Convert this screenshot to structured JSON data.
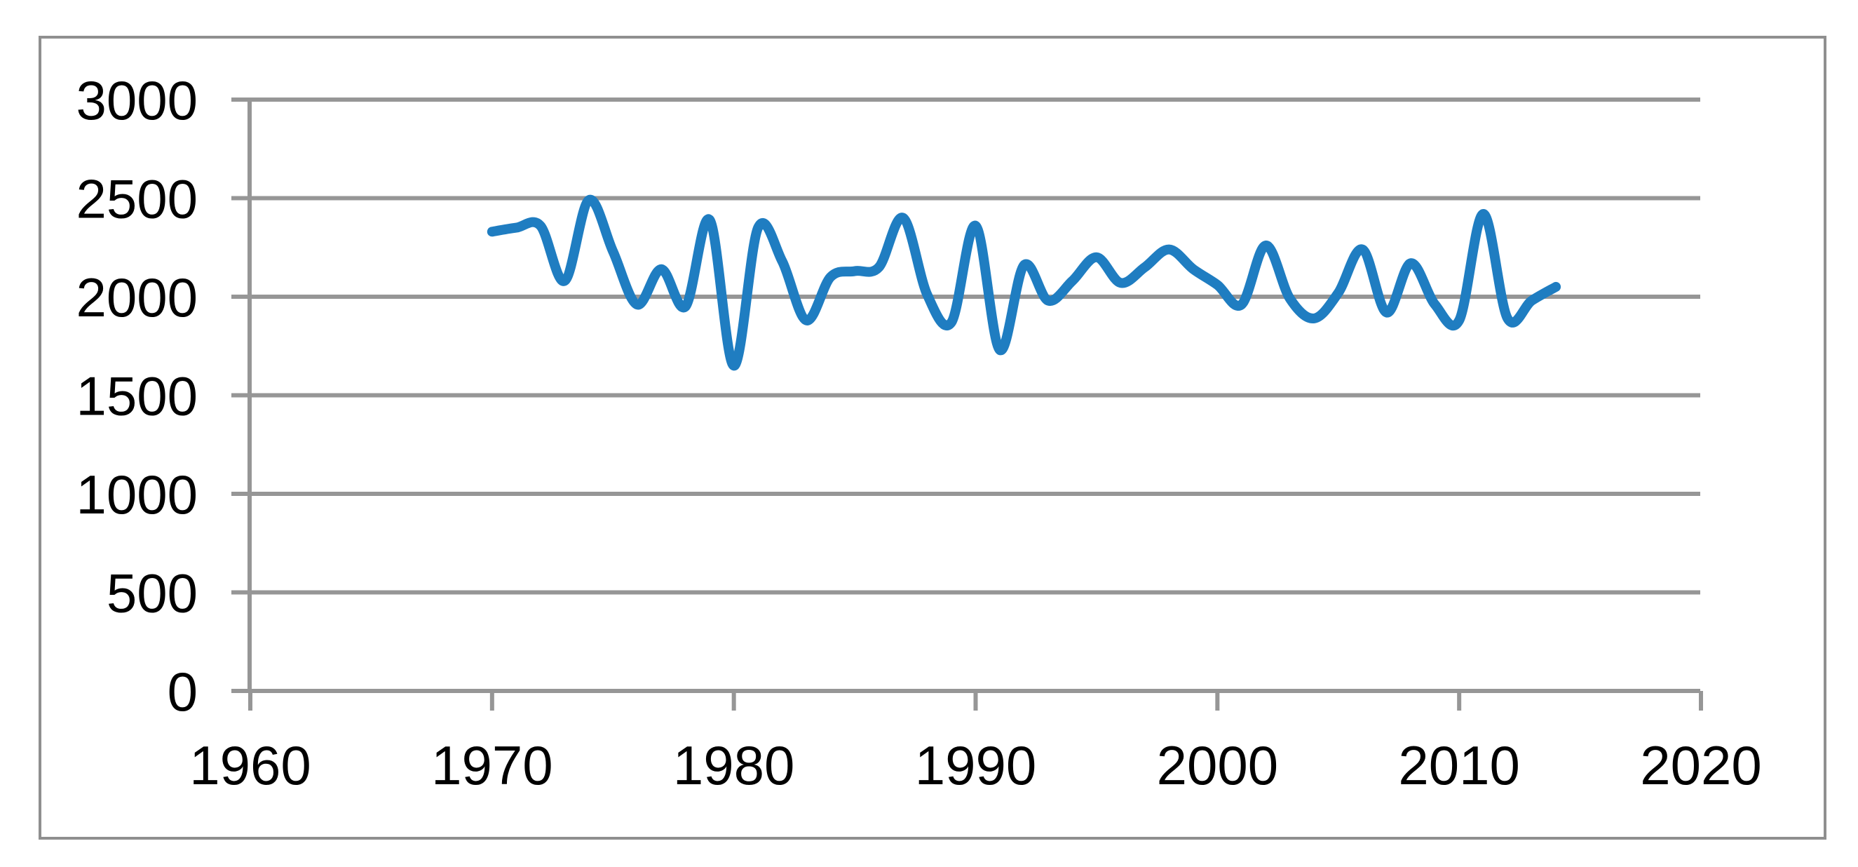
{
  "window": {
    "background_color": "#ffffff",
    "frame_border_color": "#8f8f8f"
  },
  "chart_data": {
    "type": "line",
    "title": "",
    "xlabel": "",
    "ylabel": "",
    "legend": "none",
    "grid": "horizontal",
    "smoothed": true,
    "marker": "none",
    "line_color": "#1f7dc1",
    "grid_color": "#969696",
    "axis_color": "#969696",
    "tick_label_color": "#000000",
    "xlim": [
      1960,
      2020
    ],
    "ylim": [
      0,
      3000
    ],
    "x_ticks": [
      1960,
      1970,
      1980,
      1990,
      2000,
      2010,
      2020
    ],
    "y_ticks": [
      0,
      500,
      1000,
      1500,
      2000,
      2500,
      3000
    ],
    "x": [
      1970,
      1971,
      1972,
      1973,
      1974,
      1975,
      1976,
      1977,
      1978,
      1979,
      1980,
      1981,
      1982,
      1983,
      1984,
      1985,
      1986,
      1987,
      1988,
      1989,
      1990,
      1991,
      1992,
      1993,
      1994,
      1995,
      1996,
      1997,
      1998,
      1999,
      2000,
      2001,
      2002,
      2003,
      2004,
      2005,
      2006,
      2007,
      2008,
      2009,
      2010,
      2011,
      2012,
      2013,
      2014
    ],
    "values": [
      2330,
      2350,
      2360,
      2080,
      2490,
      2230,
      1960,
      2140,
      1950,
      2390,
      1650,
      2350,
      2180,
      1880,
      2100,
      2130,
      2150,
      2400,
      2010,
      1870,
      2360,
      1730,
      2160,
      1980,
      2080,
      2200,
      2070,
      2150,
      2240,
      2140,
      2060,
      1960,
      2260,
      1990,
      1890,
      2020,
      2240,
      1920,
      2170,
      1960,
      1880,
      2420,
      1890,
      1980,
      2050
    ]
  }
}
